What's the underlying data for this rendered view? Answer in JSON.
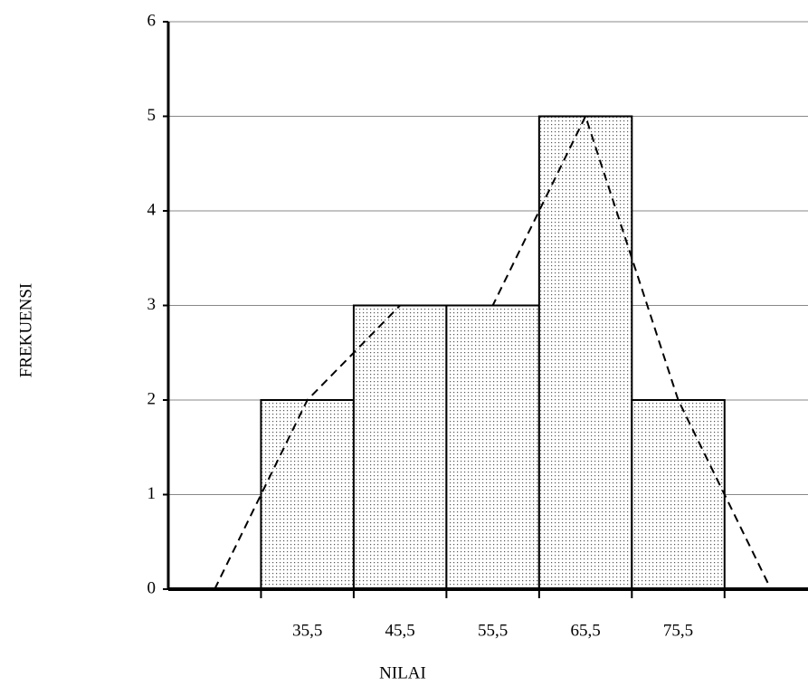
{
  "chart_data": {
    "type": "histogram",
    "bins": [
      30.5,
      40.5,
      50.5,
      60.5,
      70.5,
      80.5
    ],
    "values": [
      2,
      3,
      3,
      5,
      2
    ],
    "polygon": {
      "x": [
        25.5,
        35.5,
        45.5,
        55.5,
        65.5,
        75.5,
        85.5
      ],
      "values": [
        0,
        2,
        3,
        3,
        5,
        2,
        0
      ]
    },
    "xlabel": "NILAI",
    "ylabel": "FREKUENSI",
    "xlim": [
      20.5,
      89.5
    ],
    "xticks": [
      {
        "value": 35.5,
        "label": "35,5"
      },
      {
        "value": 45.5,
        "label": "45,5"
      },
      {
        "value": 55.5,
        "label": "55,5"
      },
      {
        "value": 65.5,
        "label": "65,5"
      },
      {
        "value": 75.5,
        "label": "75,5"
      }
    ],
    "ylim": [
      0,
      6
    ],
    "yticks": [
      0,
      1,
      2,
      3,
      4,
      5,
      6
    ],
    "grid": true
  }
}
